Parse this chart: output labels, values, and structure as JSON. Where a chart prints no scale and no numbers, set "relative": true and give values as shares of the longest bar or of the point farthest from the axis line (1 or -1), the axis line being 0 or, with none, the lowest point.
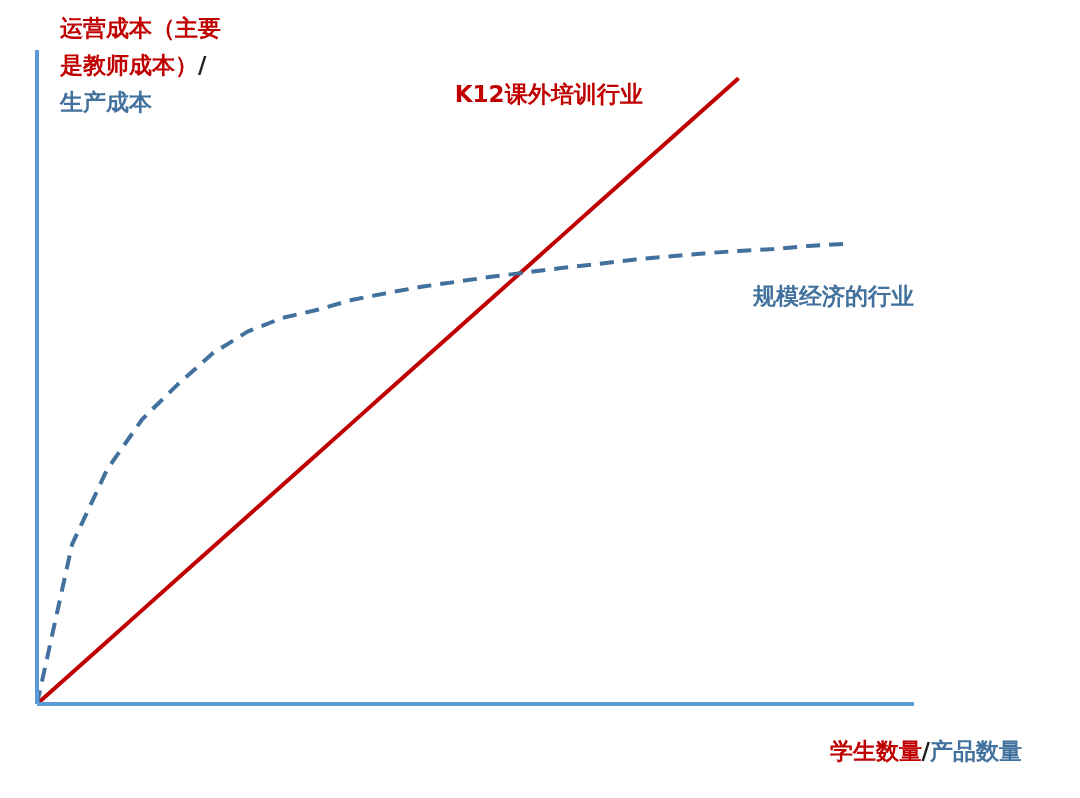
{
  "chart_data": {
    "type": "line",
    "relative": true,
    "xlabel": "学生数量/产品数量",
    "ylabel": "运营成本（主要是教师成本）/生产成本",
    "legend": false,
    "grid": false,
    "marker": "none",
    "categories": [
      null,
      null,
      null,
      null,
      null,
      null,
      null,
      null,
      null,
      null,
      null,
      null,
      null,
      null,
      null,
      null,
      null,
      null,
      null,
      null,
      null,
      null,
      null,
      null,
      null,
      null
    ],
    "series": [
      {
        "name": "K12课外培训行业",
        "color": "#c00000",
        "line_style": "solid",
        "values": [
          0,
          0.05,
          0.1,
          0.15,
          0.2,
          0.25,
          0.3,
          0.35,
          0.4,
          0.45,
          0.5,
          0.55,
          0.6,
          0.65,
          0.7,
          0.75,
          0.8,
          0.85,
          0.9,
          0.95,
          1,
          null,
          null,
          null,
          null,
          null
        ]
      },
      {
        "name": "规模经济的行业",
        "color": "#41719c",
        "line_style": "dashed",
        "values": [
          0,
          0.255,
          0.375,
          0.455,
          0.51,
          0.56,
          0.595,
          0.617,
          0.63,
          0.646,
          0.657,
          0.667,
          0.675,
          0.683,
          0.69,
          0.697,
          0.703,
          0.71,
          0.715,
          0.72,
          0.724,
          0.727,
          0.732,
          0.735,
          null,
          null
        ]
      }
    ]
  }
}
